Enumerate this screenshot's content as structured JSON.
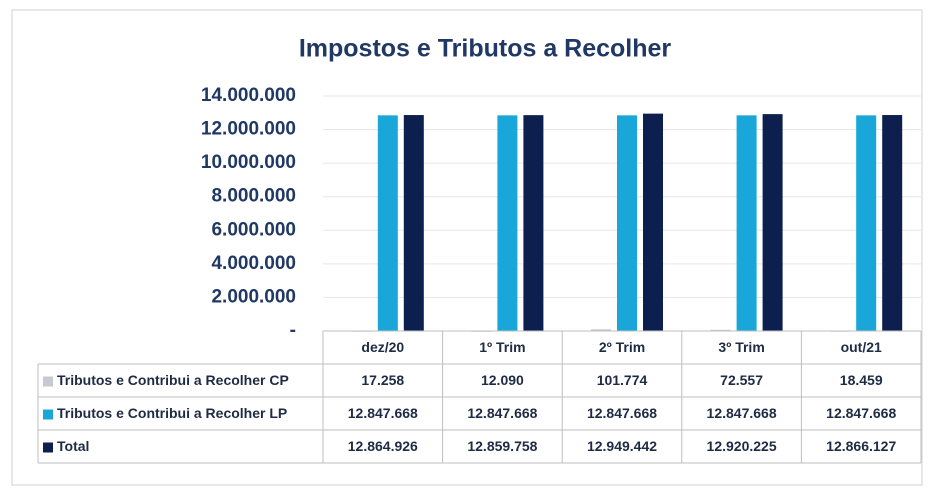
{
  "chart_data": {
    "type": "bar",
    "title": "Impostos e Tributos a Recolher",
    "categories": [
      "dez/20",
      "1º Trim",
      "2º Trim",
      "3º Trim",
      "out/21"
    ],
    "series": [
      {
        "name": "Tributos e Contribui a Recolher CP",
        "color": "#c5cad0",
        "values": [
          17258,
          12090,
          101774,
          72557,
          18459
        ],
        "value_labels": [
          "17.258",
          "12.090",
          "101.774",
          "72.557",
          "18.459"
        ]
      },
      {
        "name": "Tributos e Contribui a Recolher LP",
        "color": "#19a7d9",
        "values": [
          12847668,
          12847668,
          12847668,
          12847668,
          12847668
        ],
        "value_labels": [
          "12.847.668",
          "12.847.668",
          "12.847.668",
          "12.847.668",
          "12.847.668"
        ]
      },
      {
        "name": "Total",
        "color": "#0d1f4e",
        "values": [
          12864926,
          12859758,
          12949442,
          12920225,
          12866127
        ],
        "value_labels": [
          "12.864.926",
          "12.859.758",
          "12.949.442",
          "12.920.225",
          "12.866.127"
        ]
      }
    ],
    "ylim": [
      0,
      14000000
    ],
    "yticks": [
      {
        "value": 0,
        "label": "-"
      },
      {
        "value": 2000000,
        "label": "2.000.000"
      },
      {
        "value": 4000000,
        "label": "4.000.000"
      },
      {
        "value": 6000000,
        "label": "6.000.000"
      },
      {
        "value": 8000000,
        "label": "8.000.000"
      },
      {
        "value": 10000000,
        "label": "10.000.000"
      },
      {
        "value": 12000000,
        "label": "12.000.000"
      },
      {
        "value": 14000000,
        "label": "14.000.000"
      }
    ],
    "grid": true
  }
}
